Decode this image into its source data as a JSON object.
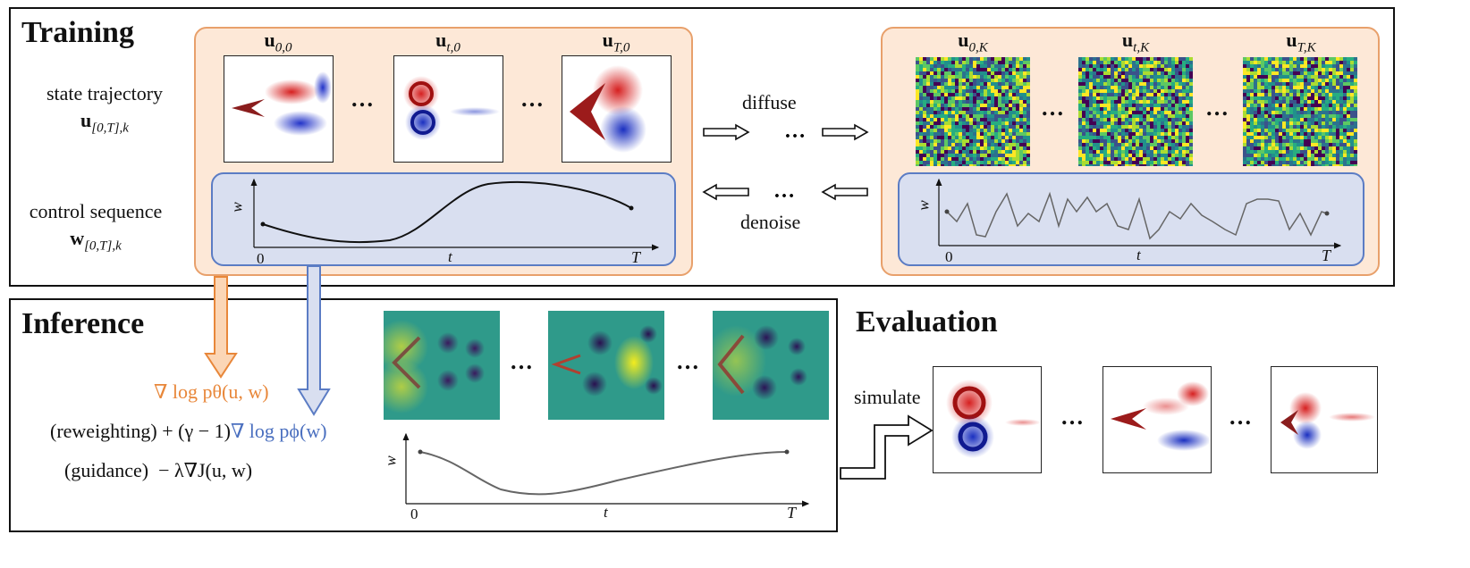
{
  "training": {
    "heading": "Training",
    "state_label": "state trajectory",
    "state_symbol": "u[0,T],k",
    "control_label": "control sequence",
    "control_symbol": "w[0,T],k",
    "clean_frames": [
      {
        "base": "u",
        "sub": "0,0"
      },
      {
        "base": "u",
        "sub": "t,0"
      },
      {
        "base": "u",
        "sub": "T,0"
      }
    ],
    "noisy_frames": [
      {
        "base": "u",
        "sub": "0,K"
      },
      {
        "base": "u",
        "sub": "t,K"
      },
      {
        "base": "u",
        "sub": "T,K"
      }
    ],
    "diffuse_label": "diffuse",
    "denoise_label": "denoise",
    "ellipsis": "…",
    "plot_y_label": "w",
    "plot_x_label": "t",
    "plot_x_start": "0",
    "plot_x_end": "T"
  },
  "inference": {
    "heading": "Inference",
    "score_term": "∇ log pθ(u, w)",
    "reweight_tag": "(reweighting)",
    "reweight_term": "+ (γ − 1)",
    "reweight_grad": "∇ log pϕ(w)",
    "guidance_tag": "(guidance)",
    "guidance_term": "− λ∇J(u, w)",
    "plot_y_label": "w",
    "plot_x_label": "t",
    "plot_x_start": "0",
    "plot_x_end": "T"
  },
  "evaluation": {
    "heading": "Evaluation",
    "simulate_label": "simulate"
  },
  "colors": {
    "orange": "#e8873a",
    "blue": "#4a6fbf",
    "panel_fill": "#fde8d7",
    "subpanel_fill": "#d9dff0"
  }
}
